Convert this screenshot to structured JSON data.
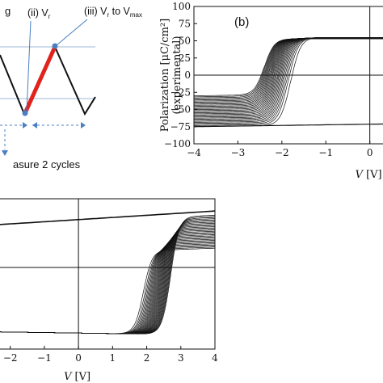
{
  "chart_data": [
    {
      "id": "a",
      "type": "line",
      "title": "",
      "labels": {
        "step_ii": "(ii) V",
        "step_ii_sub": "r",
        "step_iii": "(iii) V",
        "step_iii_sub1": "r",
        "step_iii_mid": " to V",
        "step_iii_sub2": "max",
        "partial_top": "g",
        "measure": "asure 2 cycles"
      },
      "colors": {
        "signal": "#111111",
        "highlight": "#e0231c",
        "arrow": "#4a7fc4",
        "guide": "#9db8d8"
      }
    },
    {
      "id": "b",
      "type": "line",
      "panel_label": "(b)",
      "xlabel": "V [V]",
      "xlabel_var": "V",
      "xlabel_unit": "[V]",
      "ylabel_line1": "Polarization [μC/cm²]",
      "ylabel_line2": "(experimental)",
      "xlim": [
        -4,
        0.3
      ],
      "ylim": [
        -100,
        100
      ],
      "xticks": [
        -4,
        -3,
        -2,
        -1,
        0
      ],
      "yticks": [
        100,
        75,
        50,
        25,
        0,
        -25,
        -50,
        -75,
        -100
      ],
      "switch_voltage_range": [
        -2.4,
        -1.8
      ],
      "p_sat_positive": 55,
      "p_sat_negative": -75,
      "n_curves": 30
    },
    {
      "id": "c",
      "type": "line",
      "xlabel": "V [V]",
      "xlabel_var": "V",
      "xlabel_unit": "[V]",
      "xlim": [
        -2.3,
        4
      ],
      "ylim": [
        -95,
        80
      ],
      "xticks": [
        -2,
        -1,
        0,
        1,
        2,
        3,
        4
      ],
      "switch_voltage_range": [
        1.9,
        2.7
      ],
      "p_sat_positive": 62,
      "p_sat_negative": -75,
      "n_curves": 30
    }
  ]
}
